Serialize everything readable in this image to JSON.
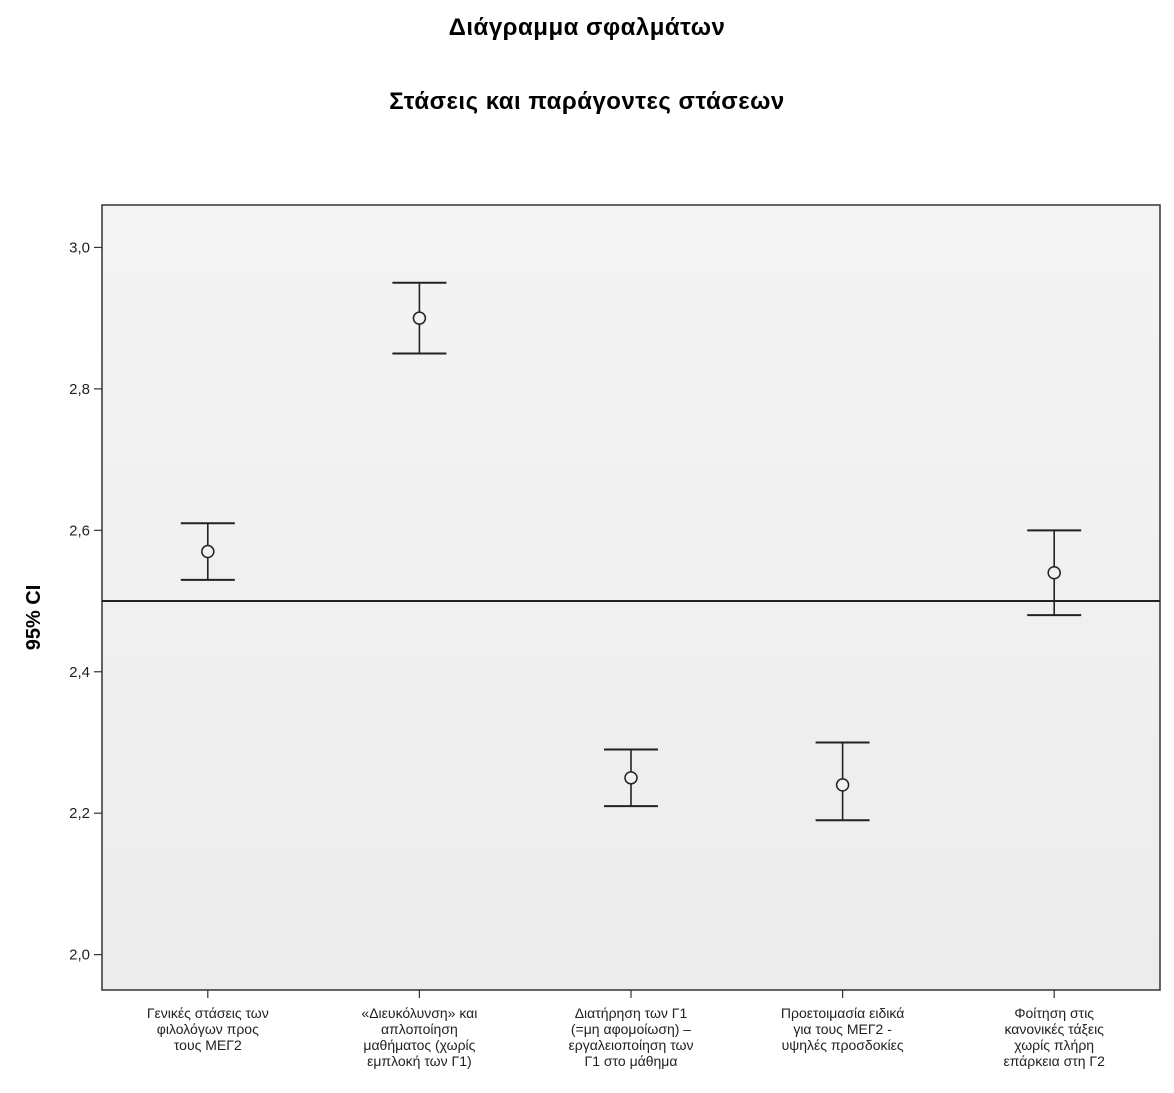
{
  "chart_data": {
    "type": "errorbar",
    "title": "Διάγραμμα σφαλμάτων",
    "subtitle": "Στάσεις και παράγοντες στάσεων",
    "ylabel": "95% CI",
    "xlabel": "",
    "ylim": [
      1.95,
      3.06
    ],
    "yticks": [
      2.0,
      2.2,
      2.4,
      2.6,
      2.8,
      3.0
    ],
    "ytick_labels": [
      "2,0",
      "2,2",
      "2,4",
      "2,6",
      "2,8",
      "3,0"
    ],
    "reference_line": 2.5,
    "grid": false,
    "categories": [
      [
        "Γενικές στάσεις των",
        "φιλολόγων προς",
        "τους ΜΕΓ2"
      ],
      [
        "«Διευκόλυνση» και",
        "απλοποίηση",
        "μαθήματος (χωρίς",
        "εμπλοκή των Γ1)"
      ],
      [
        "Διατήρηση των Γ1",
        "(=μη αφομοίωση) –",
        "εργαλειοποίηση των",
        "Γ1 στο μάθημα"
      ],
      [
        "Προετοιμασία ειδικά",
        "για τους ΜΕΓ2 -",
        "υψηλές προσδοκίες"
      ],
      [
        "Φοίτηση στις",
        "κανονικές τάξεις",
        "χωρίς πλήρη",
        "επάρκεια στη Γ2"
      ]
    ],
    "means": [
      2.57,
      2.9,
      2.25,
      2.24,
      2.54
    ],
    "lower": [
      2.53,
      2.85,
      2.21,
      2.19,
      2.48
    ],
    "upper": [
      2.61,
      2.95,
      2.29,
      2.3,
      2.6
    ]
  }
}
